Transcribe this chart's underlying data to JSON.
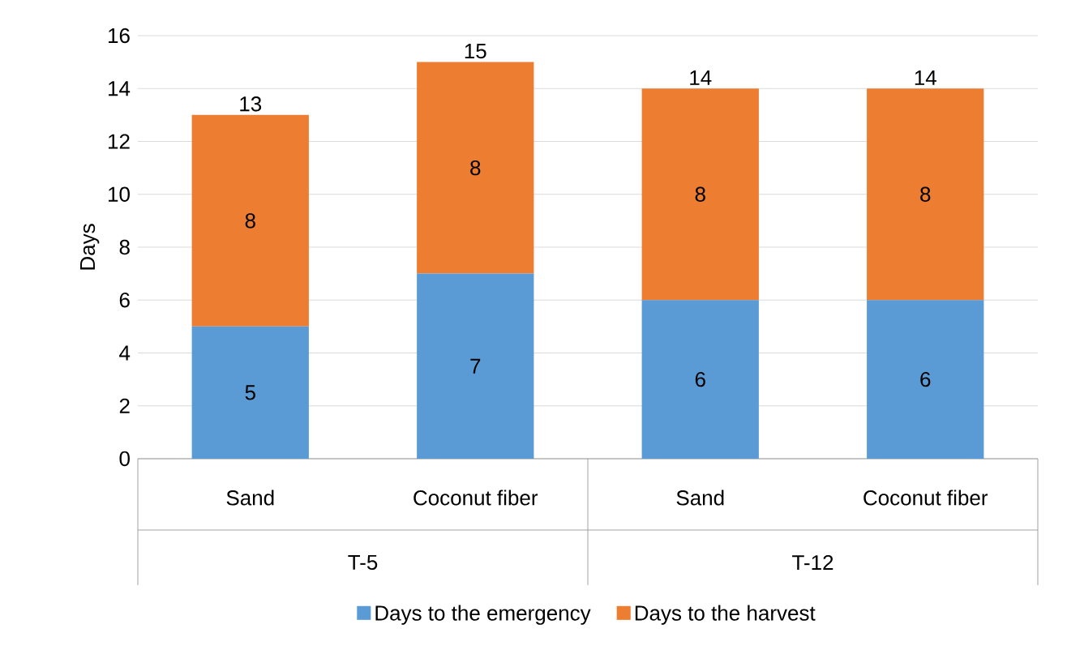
{
  "chart_data": {
    "type": "bar",
    "stacked": true,
    "ylabel": "Days",
    "categories": [
      "Sand",
      "Coconut fiber",
      "Sand",
      "Coconut fiber"
    ],
    "annotations": [
      "T-5",
      "T-12"
    ],
    "series": [
      {
        "name": "Days to the emergency",
        "color": "#5b9bd5",
        "values": [
          5,
          7,
          6,
          6
        ]
      },
      {
        "name": "Days to the harvest",
        "color": "#ed7d31",
        "values": [
          8,
          8,
          8,
          8
        ]
      }
    ],
    "totals": [
      "13",
      "15",
      "14",
      "14"
    ],
    "data_labels": true,
    "ylim": [
      0,
      16
    ],
    "yticks": [
      0,
      2,
      4,
      6,
      8,
      10,
      12,
      14,
      16
    ],
    "grid": "y",
    "legend": "bottom"
  }
}
